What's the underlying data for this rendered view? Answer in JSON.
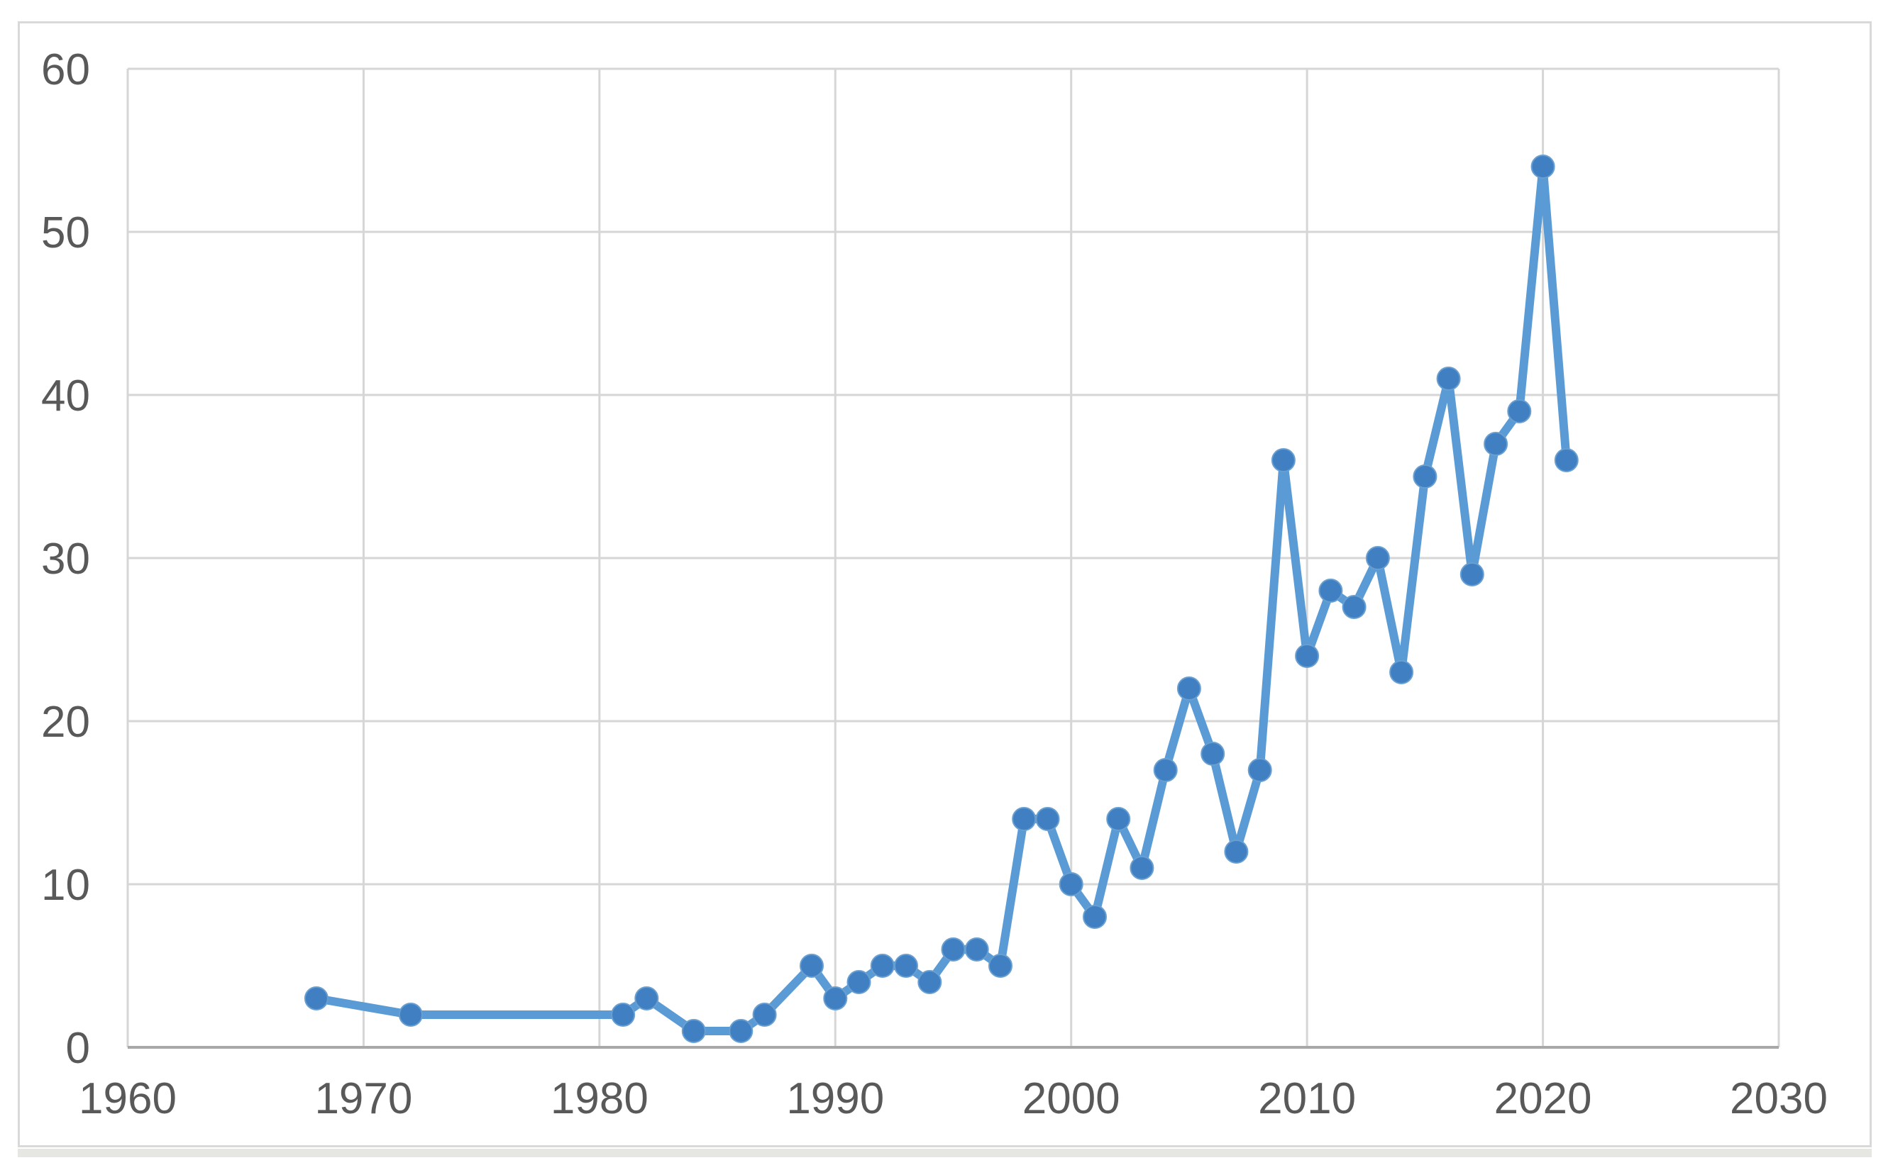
{
  "window": {
    "background": "#ffffff",
    "frame_border_color": "#d9d9d9",
    "bottom_edge_color": "#e6e6e2"
  },
  "chart_data": {
    "type": "line",
    "title": "",
    "xlabel": "",
    "ylabel": "",
    "xlim": [
      1960,
      2030
    ],
    "ylim": [
      0,
      60
    ],
    "x_ticks": [
      1960,
      1970,
      1980,
      1990,
      2000,
      2010,
      2020,
      2030
    ],
    "y_ticks": [
      0,
      10,
      20,
      30,
      40,
      50,
      60
    ],
    "grid": true,
    "legend_position": "none",
    "marker": "circle",
    "series": [
      {
        "name": "",
        "x": [
          1968,
          1972,
          1981,
          1982,
          1984,
          1986,
          1987,
          1989,
          1990,
          1991,
          1992,
          1993,
          1994,
          1995,
          1996,
          1997,
          1998,
          1999,
          2000,
          2001,
          2002,
          2003,
          2004,
          2005,
          2006,
          2007,
          2008,
          2009,
          2010,
          2011,
          2012,
          2013,
          2014,
          2015,
          2016,
          2017,
          2018,
          2019,
          2020,
          2021
        ],
        "y": [
          3,
          2,
          2,
          3,
          1,
          1,
          2,
          5,
          3,
          4,
          5,
          5,
          4,
          6,
          6,
          5,
          14,
          14,
          10,
          8,
          14,
          11,
          17,
          22,
          18,
          12,
          17,
          36,
          24,
          28,
          27,
          30,
          23,
          35,
          41,
          29,
          37,
          39,
          54,
          36
        ]
      }
    ],
    "colors": {
      "line": "#5b9bd5",
      "marker_fill": "#4080c2",
      "marker_edge": "#699fd0",
      "gridline": "#d6d6d6",
      "axis_line": "#a8a8a8",
      "tick_label": "#595959"
    }
  }
}
